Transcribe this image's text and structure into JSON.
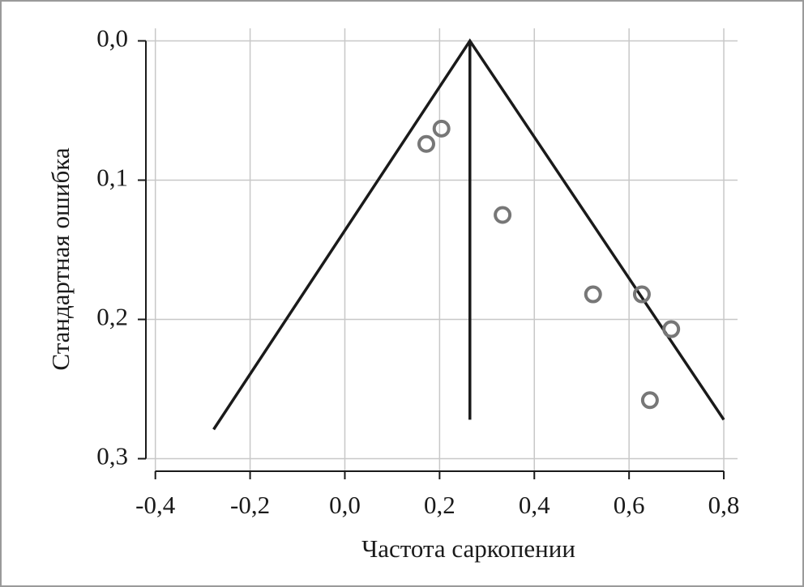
{
  "chart_data": {
    "type": "scatter",
    "x_label": "Частота саркопении",
    "y_label": "Стандартная ошибка",
    "xlim": [
      -0.42,
      0.829
    ],
    "ylim": [
      0.309,
      -0.009
    ],
    "y_inverted": true,
    "xticks": [
      {
        "value": -0.4,
        "label": "-0,4"
      },
      {
        "value": -0.2,
        "label": "-0,2"
      },
      {
        "value": 0,
        "label": "0,0"
      },
      {
        "value": 0.2,
        "label": "0,2"
      },
      {
        "value": 0.4,
        "label": "0,4"
      },
      {
        "value": 0.6,
        "label": "0,6"
      },
      {
        "value": 0.8,
        "label": "0,8"
      }
    ],
    "yticks": [
      {
        "value": 0,
        "label": "0,0"
      },
      {
        "value": 0.1,
        "label": "0,1"
      },
      {
        "value": 0.2,
        "label": "0,2"
      },
      {
        "value": 0.3,
        "label": "0,3"
      }
    ],
    "grid": true,
    "points": {
      "color": "#777777",
      "x": [
        0.172,
        0.204,
        0.333,
        0.524,
        0.627,
        0.689,
        0.644
      ],
      "y": [
        0.074,
        0.063,
        0.125,
        0.182,
        0.182,
        0.207,
        0.258
      ]
    },
    "lines": [
      {
        "color": "#1a1a1a",
        "x": [
          -0.277,
          0.264,
          0.8
        ],
        "y": [
          0.279,
          0,
          0.272
        ]
      },
      {
        "color": "#1a1a1a",
        "x": [
          0.264,
          0.264
        ],
        "y": [
          0,
          0.272
        ]
      }
    ]
  }
}
